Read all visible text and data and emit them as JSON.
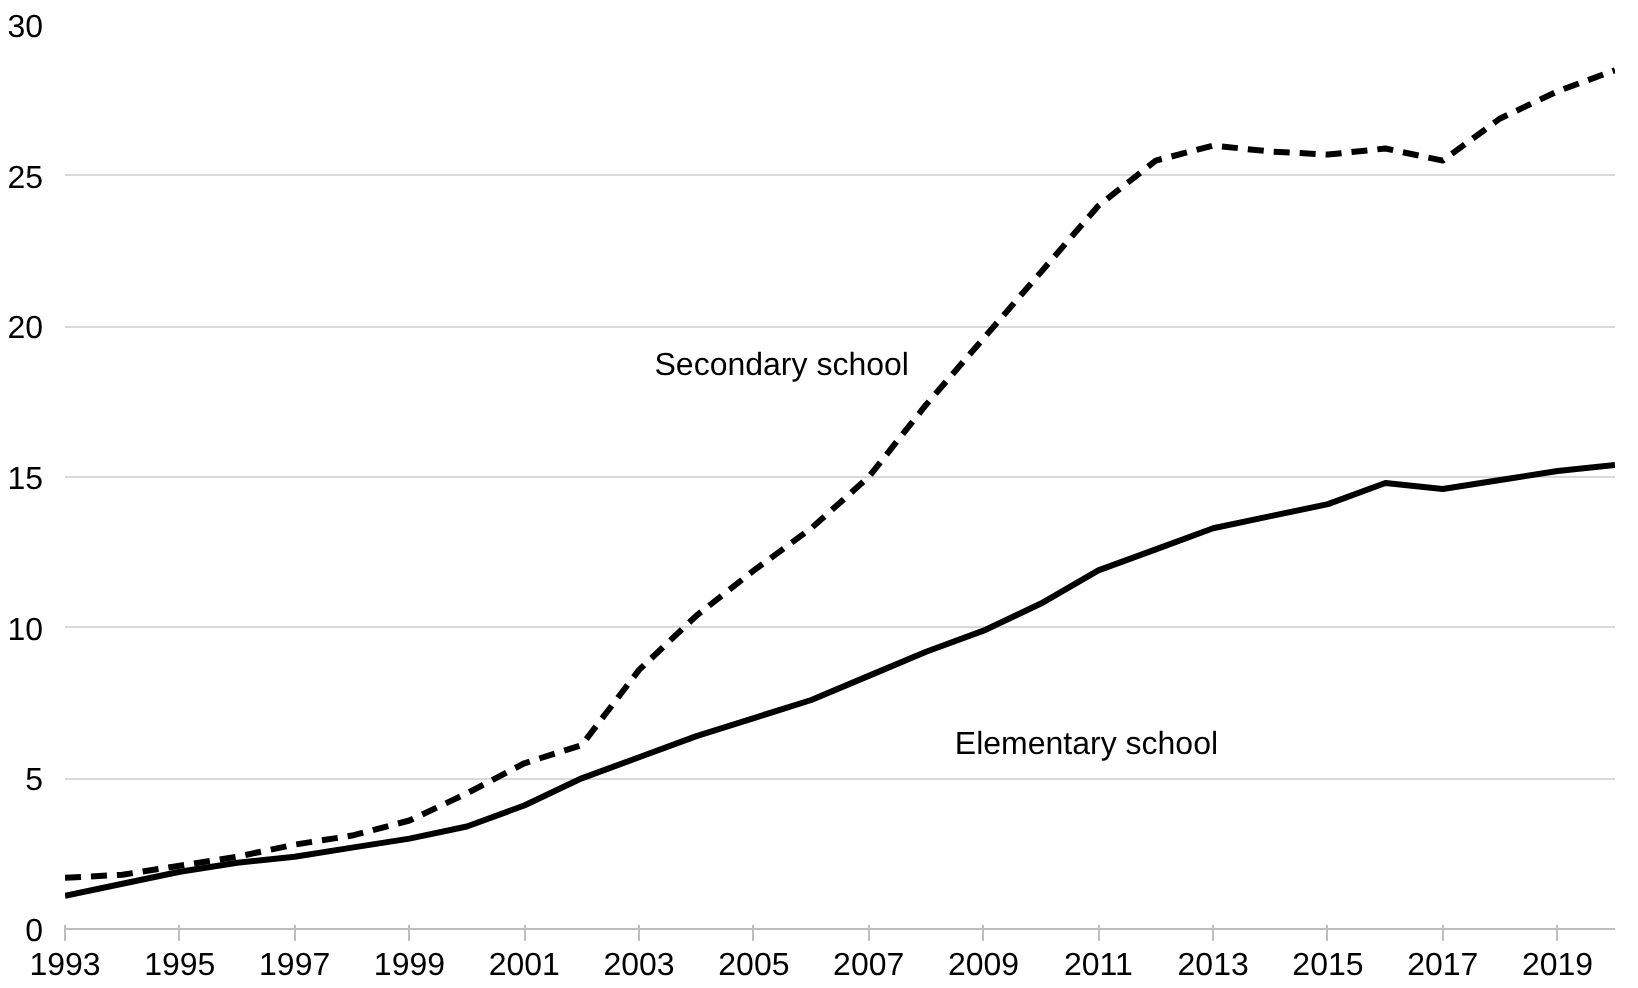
{
  "chart_data": {
    "type": "line",
    "x": [
      1993,
      1994,
      1995,
      1996,
      1997,
      1998,
      1999,
      2000,
      2001,
      2002,
      2003,
      2004,
      2005,
      2006,
      2007,
      2008,
      2009,
      2010,
      2011,
      2012,
      2013,
      2014,
      2015,
      2016,
      2017,
      2018,
      2019,
      2020
    ],
    "series": [
      {
        "name": "Secondary school",
        "color": "#000000",
        "line_style": "dashed",
        "values": [
          1.7,
          1.8,
          2.1,
          2.4,
          2.8,
          3.1,
          3.6,
          4.5,
          5.5,
          6.1,
          8.6,
          10.4,
          11.9,
          13.3,
          15.0,
          17.4,
          19.6,
          21.8,
          24.0,
          25.5,
          26.0,
          25.8,
          25.7,
          25.9,
          25.5,
          26.9,
          27.8,
          28.5
        ]
      },
      {
        "name": "Elementary school",
        "color": "#000000",
        "line_style": "solid",
        "values": [
          1.1,
          1.5,
          1.9,
          2.2,
          2.4,
          2.7,
          3.0,
          3.4,
          4.1,
          5.0,
          5.7,
          6.4,
          7.0,
          7.6,
          8.4,
          9.2,
          9.9,
          10.8,
          11.9,
          12.6,
          13.3,
          13.7,
          14.1,
          14.8,
          14.6,
          14.9,
          15.2,
          15.4
        ]
      }
    ],
    "xlim": [
      1993,
      2020
    ],
    "ylim": [
      0,
      30
    ],
    "xticks": [
      1993,
      1995,
      1997,
      1999,
      2001,
      2003,
      2005,
      2007,
      2009,
      2011,
      2013,
      2015,
      2017,
      2019
    ],
    "yticks": [
      0,
      5,
      10,
      15,
      20,
      25,
      30
    ],
    "grid": "y",
    "marker": "none"
  }
}
